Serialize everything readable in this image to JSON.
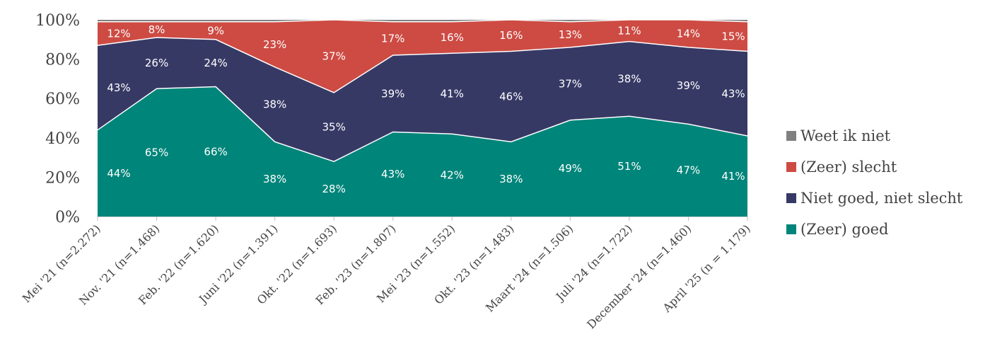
{
  "chart_data": {
    "type": "area",
    "stacked": true,
    "categories": [
      "Mei '21 (n=2.272)",
      "Nov. '21 (n=1.468)",
      "Feb. '22 (n=1.620)",
      "Juni '22 (n=1.391)",
      "Okt. '22 (n=1.693)",
      "Feb. '23 (n=1.807)",
      "Mei '23 (n=1.552)",
      "Okt. '23 (n=1.483)",
      "Maart '24 (n=1.506)",
      "Juli '24 (n=1.722)",
      "December '24 (n=1.460)",
      "April '25 (n = 1.179)"
    ],
    "series": [
      {
        "name": "(Zeer) goed",
        "color": "#00857a",
        "values": [
          44,
          65,
          66,
          38,
          28,
          43,
          42,
          38,
          49,
          51,
          47,
          41
        ],
        "labels": [
          "44%",
          "65%",
          "66%",
          "38%",
          "28%",
          "43%",
          "42%",
          "38%",
          "49%",
          "51%",
          "47%",
          "41%"
        ]
      },
      {
        "name": "Niet goed, niet slecht",
        "color": "#373965",
        "values": [
          43,
          26,
          24,
          38,
          35,
          39,
          41,
          46,
          37,
          38,
          39,
          43
        ],
        "labels": [
          "43%",
          "26%",
          "24%",
          "38%",
          "35%",
          "39%",
          "41%",
          "46%",
          "37%",
          "38%",
          "39%",
          "43%"
        ]
      },
      {
        "name": "(Zeer) slecht",
        "color": "#cd4b43",
        "values": [
          12,
          8,
          9,
          23,
          37,
          17,
          16,
          16,
          13,
          11,
          14,
          15
        ],
        "labels": [
          "12%",
          "8%",
          "9%",
          "23%",
          "37%",
          "17%",
          "16%",
          "16%",
          "13%",
          "11%",
          "14%",
          "15%"
        ]
      },
      {
        "name": "Weet ik niet",
        "color": "#808080",
        "values": [
          1,
          1,
          1,
          1,
          0,
          1,
          1,
          0,
          1,
          0,
          0,
          1
        ]
      }
    ],
    "y_ticks": [
      "0%",
      "20%",
      "40%",
      "60%",
      "80%",
      "100%"
    ],
    "ylim": [
      0,
      100
    ],
    "legend_position": "right",
    "legend_order": [
      "Weet ik niet",
      "(Zeer) slecht",
      "Niet goed, niet slecht",
      "(Zeer) goed"
    ]
  }
}
